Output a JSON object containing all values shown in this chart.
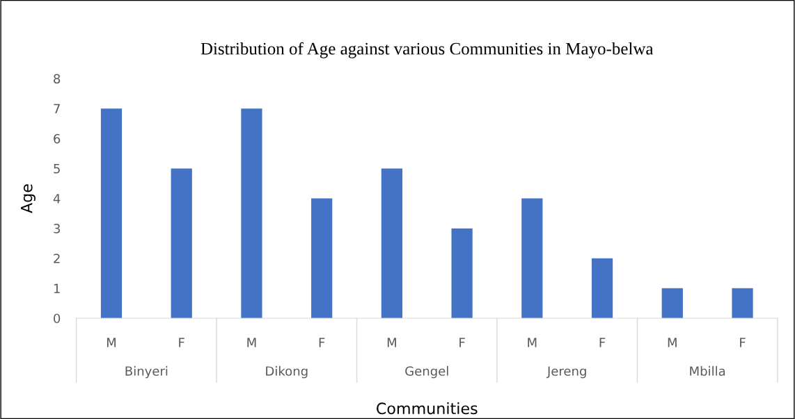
{
  "chart_data": {
    "type": "bar",
    "title": "Distribution of Age against various Communities in Mayo-belwa",
    "xlabel": "Communities",
    "ylabel": "Age",
    "categories": [
      "M",
      "F",
      "M",
      "F",
      "M",
      "F",
      "M",
      "F",
      "M",
      "F"
    ],
    "values": [
      7,
      5,
      7,
      4,
      5,
      3,
      4,
      2,
      1,
      1
    ],
    "color": "#4472c4",
    "annotations": [
      "Binyeri",
      "Dikong",
      "Gengel",
      "Jereng",
      "Mbilla"
    ],
    "ylim": [
      0,
      8
    ],
    "yticks": [
      0,
      1,
      2,
      3,
      4,
      5,
      6,
      7,
      8
    ],
    "grid": false,
    "legend": false
  }
}
